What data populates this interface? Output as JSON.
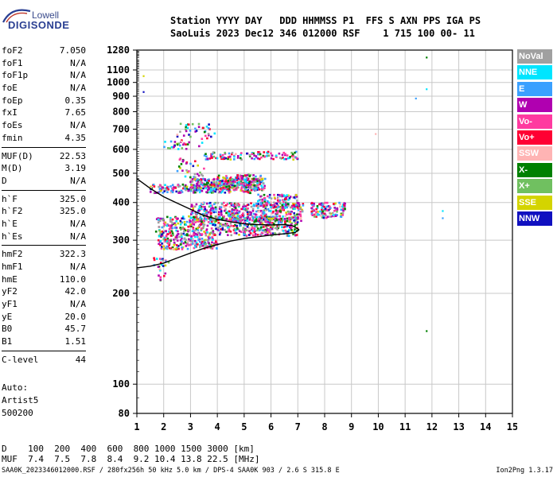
{
  "logo": {
    "top": "Lowell",
    "bottom": "DIGISONDE"
  },
  "header": {
    "line1": "Station YYYY DAY   DDD HHMMSS P1  FFS S AXN PPS IGA PS",
    "line2": "SaoLuis 2023 Dec12 346 012000 RSF    1 715 100 00- 11"
  },
  "params": {
    "g1": [
      {
        "label": "foF2",
        "value": "7.050"
      },
      {
        "label": "foF1",
        "value": "N/A"
      },
      {
        "label": "foF1p",
        "value": "N/A"
      },
      {
        "label": "foE",
        "value": "N/A"
      },
      {
        "label": "foEp",
        "value": "0.35"
      },
      {
        "label": "fxI",
        "value": "7.65"
      },
      {
        "label": "foEs",
        "value": "N/A"
      },
      {
        "label": "fmin",
        "value": "4.35"
      }
    ],
    "g2": [
      {
        "label": "MUF(D)",
        "value": "22.53"
      },
      {
        "label": "M(D)",
        "value": "3.19"
      },
      {
        "label": "D",
        "value": "N/A"
      }
    ],
    "g3": [
      {
        "label": "h`F",
        "value": "325.0"
      },
      {
        "label": "h`F2",
        "value": "325.0"
      },
      {
        "label": "h`E",
        "value": "N/A"
      },
      {
        "label": "h`Es",
        "value": "N/A"
      }
    ],
    "g4": [
      {
        "label": "hmF2",
        "value": "322.3"
      },
      {
        "label": "hmF1",
        "value": "N/A"
      },
      {
        "label": "hmE",
        "value": "110.0"
      },
      {
        "label": "yF2",
        "value": "42.0"
      },
      {
        "label": "yF1",
        "value": "N/A"
      },
      {
        "label": "yE",
        "value": "20.0"
      },
      {
        "label": "B0",
        "value": "45.7"
      },
      {
        "label": "B1",
        "value": "1.51"
      }
    ],
    "g5": [
      {
        "label": "C-level",
        "value": "44"
      }
    ]
  },
  "auto": {
    "line1": "Auto:",
    "line2": "Artist5",
    "line3": "500200"
  },
  "muf_table": {
    "line1": "D    100  200  400  600  800 1000 1500 3000 [km]",
    "line2": "MUF  7.4  7.5  7.8  8.4  9.2 10.4 13.8 22.5 [MHz]"
  },
  "footer": "SAA0K_2023346012000.RSF / 280fx256h 50 kHz 5.0 km / DPS-4 SAA0K 903 / 2.6 S 315.8 E",
  "version": "Ion2Png 1.3.17",
  "legend": [
    {
      "label": "NoVal",
      "color": "#a0a0a0"
    },
    {
      "label": "NNE",
      "color": "#00e5ff"
    },
    {
      "label": "E",
      "color": "#3aa0ff"
    },
    {
      "label": "W",
      "color": "#b000b0"
    },
    {
      "label": "Vo-",
      "color": "#ff3aa0"
    },
    {
      "label": "Vo+",
      "color": "#ff0033"
    },
    {
      "label": "SSW",
      "color": "#ffb4b4"
    },
    {
      "label": "X-",
      "color": "#008000"
    },
    {
      "label": "X+",
      "color": "#70c060"
    },
    {
      "label": "SSE",
      "color": "#d4d400"
    },
    {
      "label": "NNW",
      "color": "#1010c0"
    }
  ],
  "chart_data": {
    "type": "scatter",
    "xlabel": "",
    "ylabel": "",
    "xlim": [
      1,
      15
    ],
    "ylim": [
      80,
      1280
    ],
    "y_scale": "log",
    "xticks": [
      1,
      2,
      3,
      4,
      5,
      6,
      7,
      8,
      9,
      10,
      11,
      12,
      13,
      14,
      15
    ],
    "yticks": [
      80,
      100,
      200,
      300,
      400,
      500,
      600,
      700,
      800,
      900,
      1000,
      1100,
      1280
    ],
    "grid": true,
    "traces": [
      {
        "color": "#000000",
        "points": [
          [
            1.0,
            480
          ],
          [
            1.5,
            445
          ],
          [
            2.0,
            418
          ],
          [
            2.5,
            398
          ],
          [
            3.0,
            380
          ],
          [
            3.5,
            362
          ],
          [
            4.0,
            352
          ],
          [
            4.5,
            345
          ],
          [
            5.0,
            340
          ],
          [
            5.5,
            338
          ],
          [
            6.0,
            337
          ],
          [
            6.5,
            338
          ],
          [
            6.8,
            335
          ],
          [
            7.05,
            325
          ]
        ]
      },
      {
        "color": "#000000",
        "points": [
          [
            1.0,
            243
          ],
          [
            1.5,
            246
          ],
          [
            2.0,
            252
          ],
          [
            2.5,
            262
          ],
          [
            3.0,
            272
          ],
          [
            3.5,
            282
          ],
          [
            4.0,
            290
          ],
          [
            4.5,
            298
          ],
          [
            5.0,
            304
          ],
          [
            5.5,
            308
          ],
          [
            6.0,
            312
          ],
          [
            6.5,
            315
          ],
          [
            6.9,
            318
          ],
          [
            7.05,
            325
          ]
        ]
      }
    ],
    "clusters": [
      {
        "x": [
          1.5,
          5.5
        ],
        "y": [
          430,
          460
        ],
        "n": 220
      },
      {
        "x": [
          3.0,
          5.8
        ],
        "y": [
          440,
          480
        ],
        "n": 260
      },
      {
        "x": [
          4.0,
          5.7
        ],
        "y": [
          460,
          495
        ],
        "n": 90
      },
      {
        "x": [
          2.5,
          4.0
        ],
        "y": [
          610,
          730
        ],
        "n": 40
      },
      {
        "x": [
          3.5,
          7.0
        ],
        "y": [
          555,
          590
        ],
        "n": 110
      },
      {
        "x": [
          2.0,
          3.0
        ],
        "y": [
          600,
          640
        ],
        "n": 25
      },
      {
        "x": [
          1.7,
          7.0
        ],
        "y": [
          310,
          360
        ],
        "n": 520
      },
      {
        "x": [
          3.0,
          7.2
        ],
        "y": [
          345,
          400
        ],
        "n": 480
      },
      {
        "x": [
          5.5,
          7.0
        ],
        "y": [
          380,
          425
        ],
        "n": 110
      },
      {
        "x": [
          7.5,
          8.8
        ],
        "y": [
          355,
          400
        ],
        "n": 120
      },
      {
        "x": [
          1.8,
          4.0
        ],
        "y": [
          280,
          315
        ],
        "n": 200
      },
      {
        "x": [
          1.6,
          2.2
        ],
        "y": [
          220,
          265
        ],
        "n": 25
      },
      {
        "x": [
          2.5,
          3.5
        ],
        "y": [
          480,
          560
        ],
        "n": 30
      }
    ],
    "outliers": [
      {
        "x": 1.25,
        "y": 1050,
        "color": "#d4d400"
      },
      {
        "x": 1.25,
        "y": 930,
        "color": "#1010c0"
      },
      {
        "x": 9.9,
        "y": 675,
        "color": "#ffb4b4"
      },
      {
        "x": 11.8,
        "y": 1210,
        "color": "#008000"
      },
      {
        "x": 11.8,
        "y": 950,
        "color": "#00e5ff"
      },
      {
        "x": 11.4,
        "y": 885,
        "color": "#3aa0ff"
      },
      {
        "x": 12.4,
        "y": 375,
        "color": "#00e5ff"
      },
      {
        "x": 12.4,
        "y": 355,
        "color": "#3aa0ff"
      },
      {
        "x": 11.8,
        "y": 150,
        "color": "#008000"
      }
    ]
  }
}
